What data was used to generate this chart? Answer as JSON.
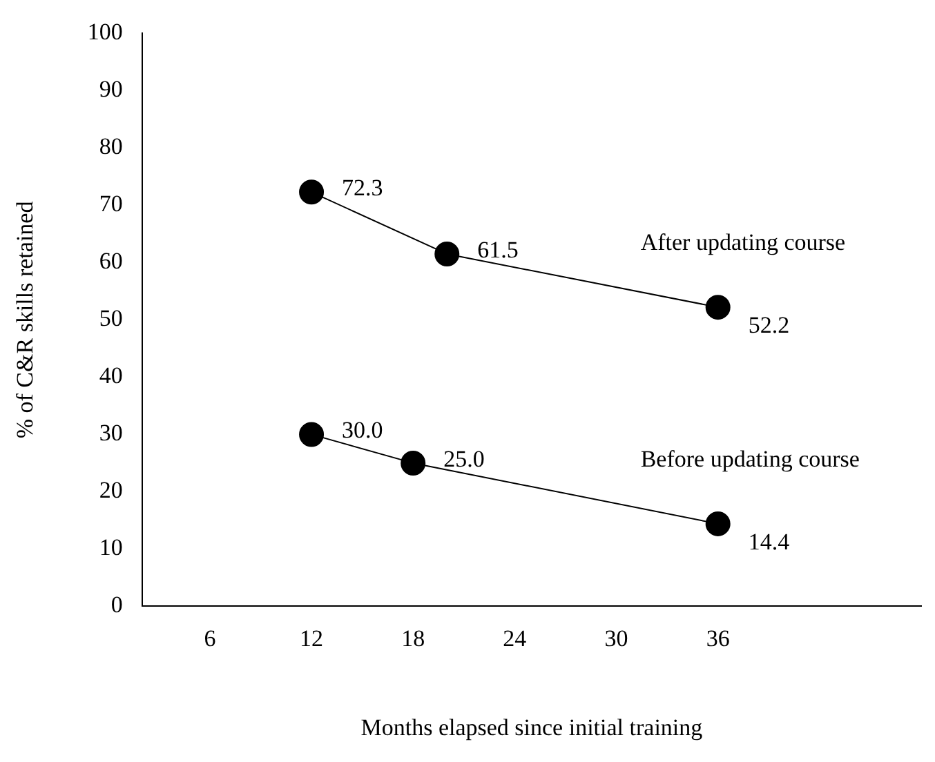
{
  "chart_data": {
    "type": "line",
    "xlabel": "Months elapsed since initial training",
    "ylabel": "% of C&R skills retained",
    "xlim": [
      2,
      48
    ],
    "xticks": [
      6,
      12,
      18,
      24,
      30,
      36
    ],
    "ylim": [
      0,
      100
    ],
    "yticks": [
      0,
      10,
      20,
      30,
      40,
      50,
      60,
      70,
      80,
      90,
      100
    ],
    "grid": false,
    "legend": false,
    "marker": "circle",
    "line_style": "solid",
    "series": [
      {
        "name": "After updating course",
        "color": "#000000",
        "x": [
          12,
          20,
          36
        ],
        "values": [
          72.3,
          61.5,
          52.2
        ],
        "value_labels": [
          "72.3",
          "61.5",
          "52.2"
        ]
      },
      {
        "name": "Before updating course",
        "color": "#000000",
        "x": [
          12,
          18,
          36
        ],
        "values": [
          30.0,
          25.0,
          14.4
        ],
        "value_labels": [
          "30.0",
          "25.0",
          "14.4"
        ]
      }
    ]
  }
}
